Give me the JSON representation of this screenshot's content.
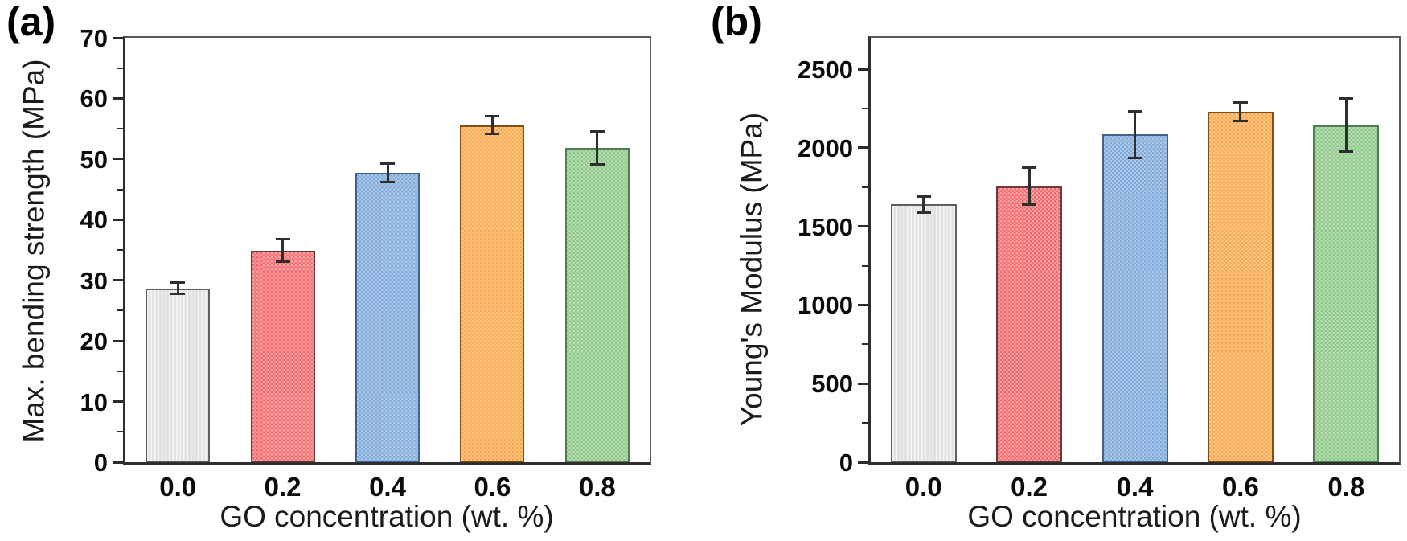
{
  "figure": {
    "panels": [
      {
        "label": "(a)"
      },
      {
        "label": "(b)"
      }
    ]
  },
  "chart_data": [
    {
      "type": "bar",
      "panel": "a",
      "title": "",
      "xlabel": "GO concentration (wt. %)",
      "ylabel": "Max. bending strength (MPa)",
      "categories": [
        "0.0",
        "0.2",
        "0.4",
        "0.6",
        "0.8"
      ],
      "values": [
        28.7,
        34.9,
        47.7,
        55.6,
        51.8
      ],
      "errors": [
        1.0,
        1.9,
        1.6,
        1.5,
        2.8
      ],
      "ylim": [
        0,
        70
      ],
      "yticks": [
        0,
        10,
        20,
        30,
        40,
        50,
        60,
        70
      ],
      "minor_tick_step": 5,
      "grid": false,
      "legend": "none",
      "error_color": "#2e2e2e",
      "bar_styles": [
        {
          "fill": "#e2e2e2",
          "light": "#f6f6f6",
          "edge": "#5f5f5f",
          "pattern": "stripes-vertical"
        },
        {
          "fill": "#f1686c",
          "light": "#f8a2a4",
          "edge": "#6a3a3c",
          "pattern": "checker"
        },
        {
          "fill": "#7ea9d8",
          "light": "#adc9e9",
          "edge": "#41618c",
          "pattern": "checker"
        },
        {
          "fill": "#f9a64c",
          "light": "#fcc98a",
          "edge": "#7d4f16",
          "pattern": "checker"
        },
        {
          "fill": "#8dc789",
          "light": "#b8ddb4",
          "edge": "#4f7d4f",
          "pattern": "checker"
        }
      ]
    },
    {
      "type": "bar",
      "panel": "b",
      "title": "",
      "xlabel": "GO concentration (wt. %)",
      "ylabel": "Young's Modulus (MPa)",
      "categories": [
        "0.0",
        "0.2",
        "0.4",
        "0.6",
        "0.8"
      ],
      "values": [
        1640,
        1755,
        2085,
        2230,
        2145
      ],
      "errors": [
        55,
        120,
        150,
        60,
        170
      ],
      "ylim": [
        0,
        2700
      ],
      "yticks": [
        0,
        500,
        1000,
        1500,
        2000,
        2500
      ],
      "minor_tick_step": 250,
      "grid": false,
      "legend": "none",
      "error_color": "#2e2e2e",
      "bar_styles": [
        {
          "fill": "#e2e2e2",
          "light": "#f6f6f6",
          "edge": "#5f5f5f",
          "pattern": "stripes-vertical"
        },
        {
          "fill": "#f1686c",
          "light": "#f8a2a4",
          "edge": "#6a3a3c",
          "pattern": "checker"
        },
        {
          "fill": "#7ea9d8",
          "light": "#adc9e9",
          "edge": "#41618c",
          "pattern": "checker"
        },
        {
          "fill": "#f9a64c",
          "light": "#fcc98a",
          "edge": "#7d4f16",
          "pattern": "checker"
        },
        {
          "fill": "#8dc789",
          "light": "#b8ddb4",
          "edge": "#4f7d4f",
          "pattern": "checker"
        }
      ]
    }
  ]
}
